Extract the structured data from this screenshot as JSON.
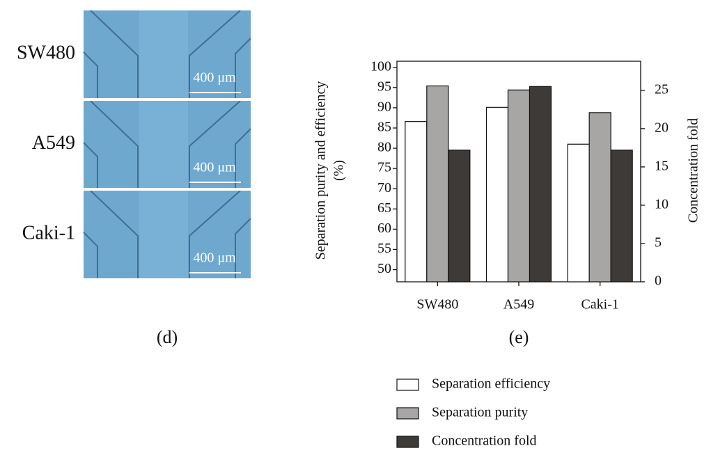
{
  "image_panel": {
    "rows": [
      {
        "label": "SW480",
        "scale": "400 μm"
      },
      {
        "label": "A549",
        "scale": "400 μm"
      },
      {
        "label": "Caki-1",
        "scale": "400 μm"
      }
    ],
    "caption": "(d)"
  },
  "chart_data": {
    "type": "bar",
    "caption": "(e)",
    "categories": [
      "SW480",
      "A549",
      "Caki-1"
    ],
    "ylabel": [
      "Separation purity and efficiency",
      "(%)"
    ],
    "y2label": "Concentration fold",
    "ylim": [
      47,
      101.5
    ],
    "yticks": [
      50,
      55,
      60,
      65,
      70,
      75,
      80,
      85,
      90,
      95,
      100
    ],
    "y2lim": [
      0,
      28.8
    ],
    "y2ticks": [
      0,
      5,
      10,
      15,
      20,
      25
    ],
    "series": [
      {
        "name": "Separation efficiency",
        "color": "#ffffff",
        "values": [
          86.6,
          90.1,
          81.0
        ]
      },
      {
        "name": "Separation purity",
        "color": "#a8a6a5",
        "values": [
          95.4,
          94.4,
          88.8
        ]
      },
      {
        "name": "Concentration fold",
        "color": "#3d3a37",
        "axis": "y2",
        "values": [
          17.2,
          25.5,
          17.2
        ]
      }
    ]
  }
}
